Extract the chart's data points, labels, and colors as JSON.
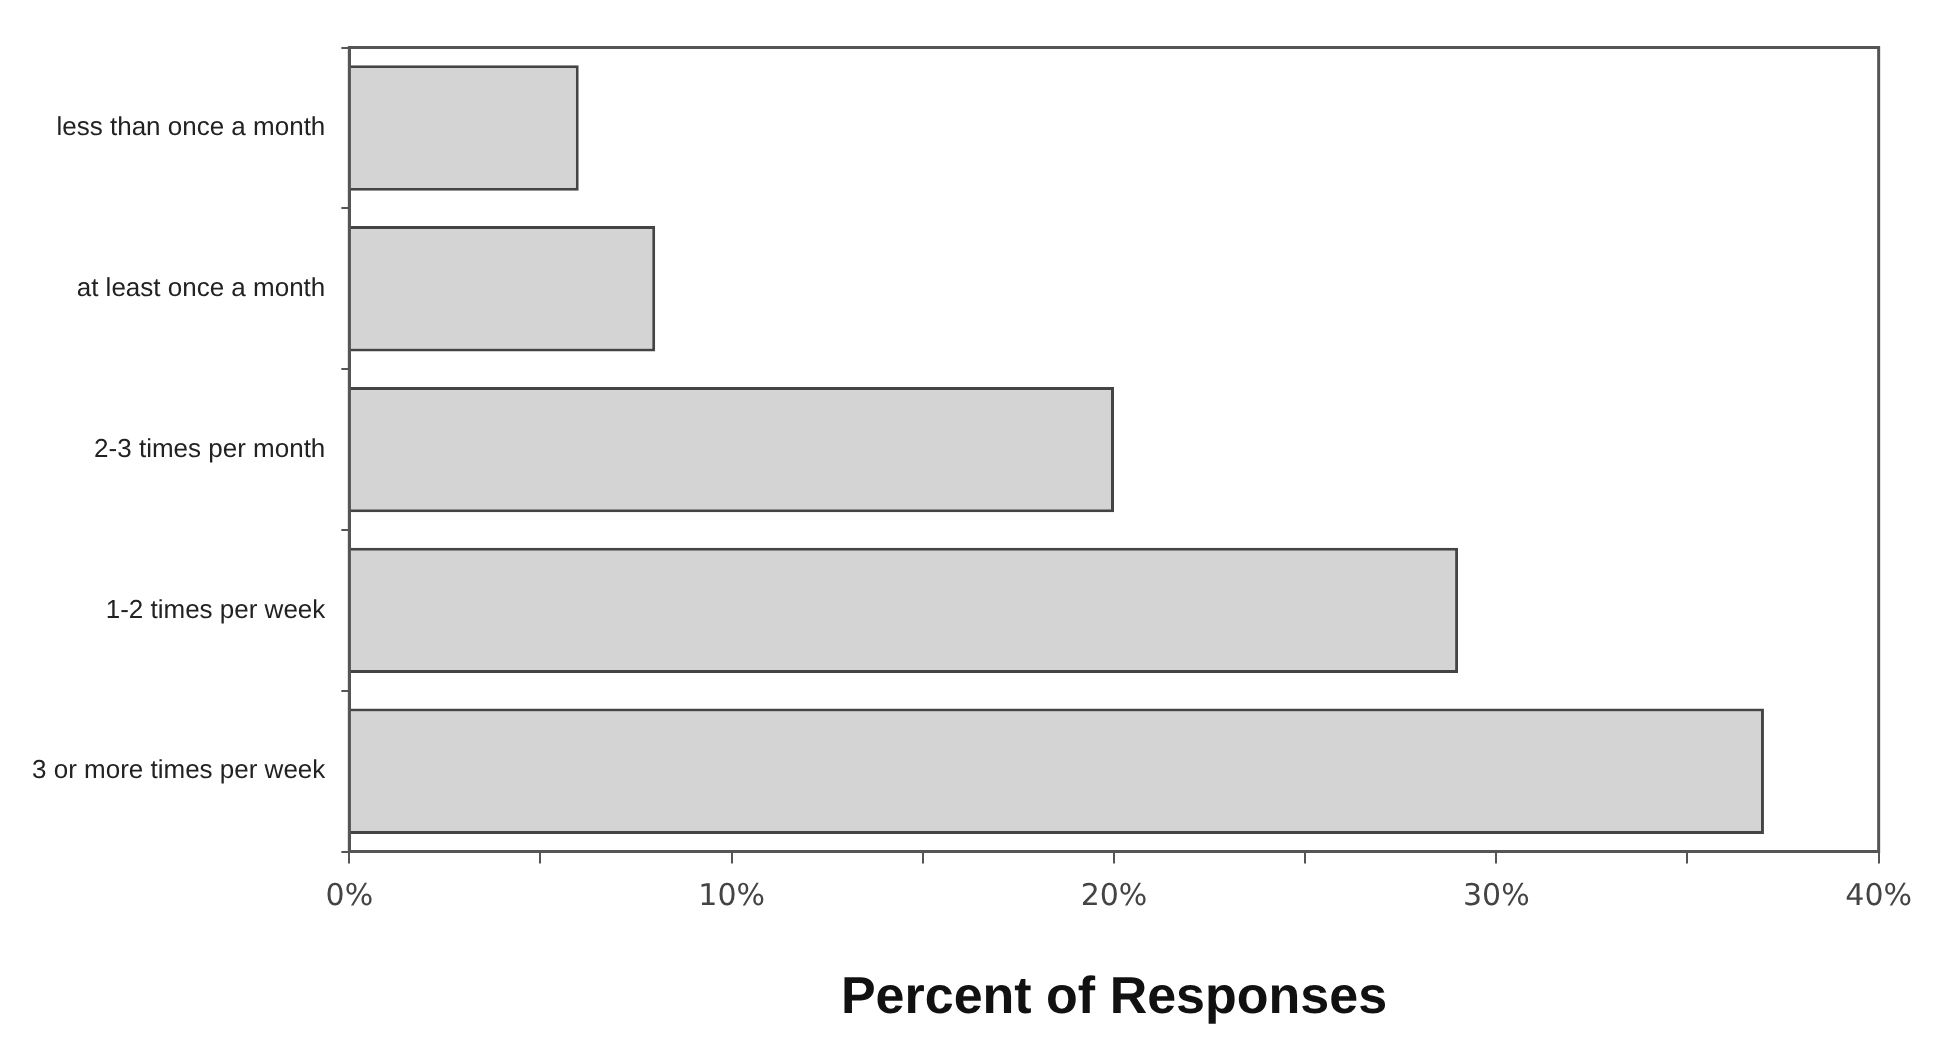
{
  "chart_data": {
    "type": "bar",
    "orientation": "horizontal",
    "xlabel": "Percent of Responses",
    "categories": [
      "less than once a month",
      "at least once a month",
      "2-3 times per month",
      "1-2 times per week",
      "3 or more times per week"
    ],
    "values": [
      6,
      8,
      20,
      29,
      37
    ],
    "color": "#d4d4d4",
    "xlim": [
      0,
      40
    ],
    "xticks": [
      {
        "value": 0,
        "label": "0%"
      },
      {
        "value": 5,
        "label": null
      },
      {
        "value": 10,
        "label": "10%"
      },
      {
        "value": 15,
        "label": null
      },
      {
        "value": 20,
        "label": "20%"
      },
      {
        "value": 25,
        "label": null
      },
      {
        "value": 30,
        "label": "30%"
      },
      {
        "value": 35,
        "label": null
      },
      {
        "value": 40,
        "label": "40%"
      }
    ],
    "grid": false,
    "legend": false
  }
}
